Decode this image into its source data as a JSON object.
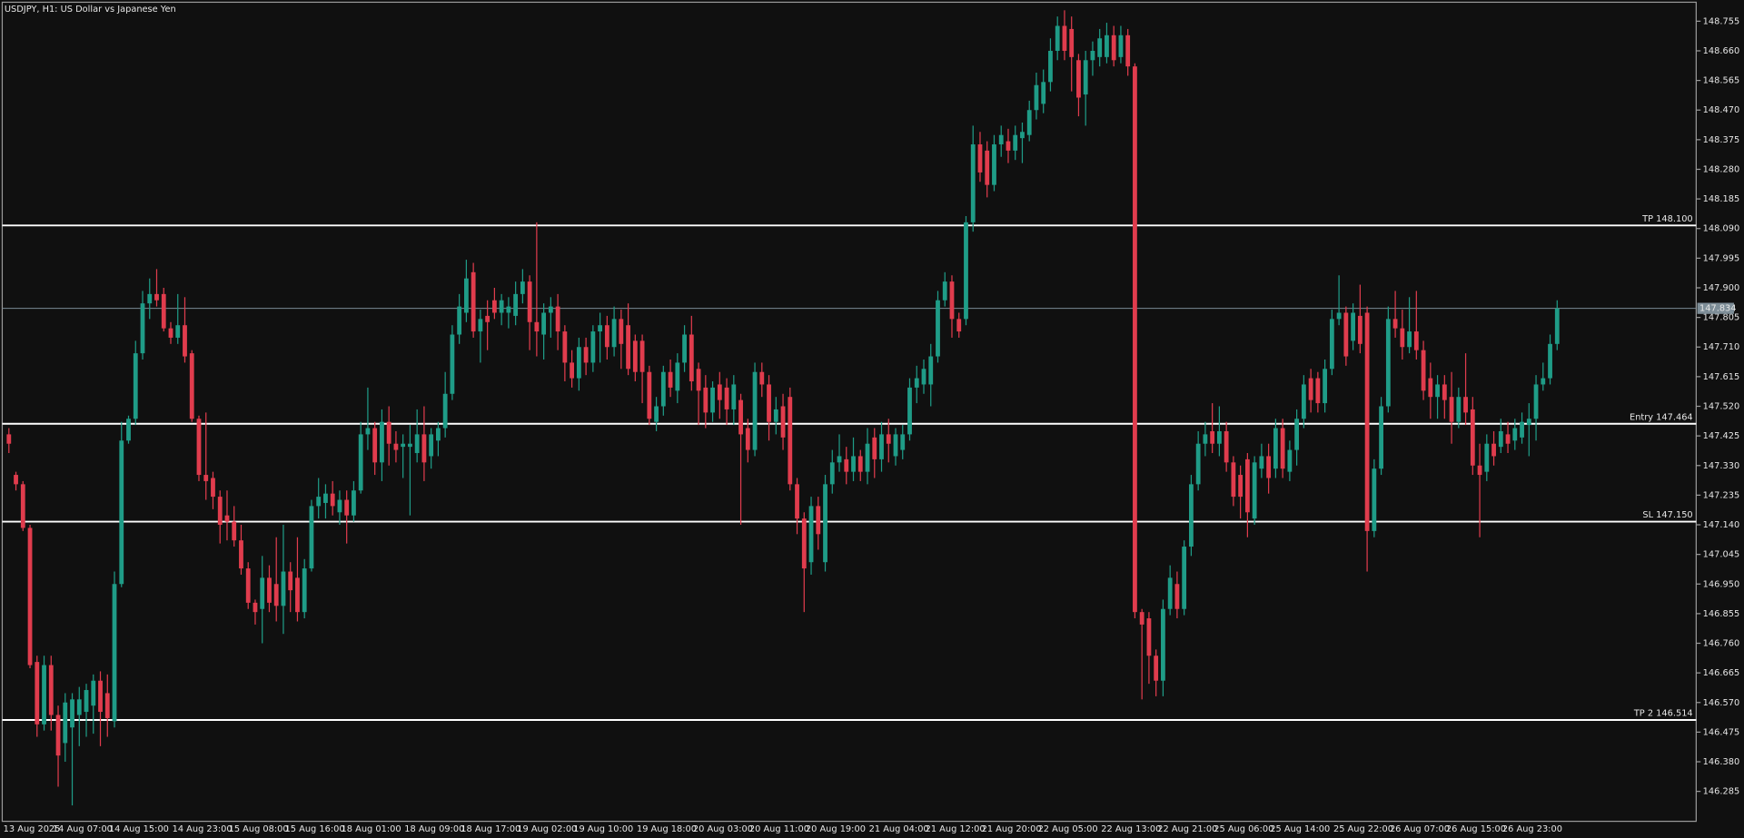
{
  "chart_data": {
    "type": "candlestick",
    "title": "USDJPY, H1:  US Dollar vs Japanese Yen",
    "up_color": "#1f9c87",
    "down_color": "#e03c4d",
    "ylim": [
      146.189,
      148.823
    ],
    "yticks": [
      148.755,
      {
        "value": 148.66,
        "label": "148.660"
      },
      148.565,
      {
        "value": 148.47,
        "label": "148.470"
      },
      148.375,
      {
        "value": 148.28,
        "label": "148.280"
      },
      148.185,
      {
        "value": 148.09,
        "label": "148.090"
      },
      147.995,
      {
        "value": 147.9,
        "label": "147.900"
      },
      147.805,
      {
        "value": 147.71,
        "label": "147.710"
      },
      147.615,
      {
        "value": 147.52,
        "label": "147.520"
      },
      147.425,
      {
        "value": 147.33,
        "label": "147.330"
      },
      147.235,
      {
        "value": 147.14,
        "label": "147.140"
      },
      147.045,
      {
        "value": 146.95,
        "label": "146.950"
      },
      146.855,
      {
        "value": 146.76,
        "label": "146.760"
      },
      146.665,
      {
        "value": 146.57,
        "label": "146.570"
      },
      146.475,
      {
        "value": 146.38,
        "label": "146.380"
      },
      146.285
    ],
    "levels": [
      {
        "value": 148.1,
        "label": "TP 148.100"
      },
      {
        "value": 147.464,
        "label": "Entry 147.464"
      },
      {
        "value": 147.15,
        "label": "SL 147.150"
      },
      {
        "value": 146.514,
        "label": "TP 2 146.514"
      }
    ],
    "last_price": {
      "value": 147.834,
      "label": "147.834"
    },
    "categories": [
      "13 Aug 2025",
      null,
      null,
      null,
      null,
      null,
      null,
      "14 Aug 07:00",
      null,
      null,
      null,
      null,
      null,
      null,
      null,
      "14 Aug 15:00",
      null,
      null,
      null,
      null,
      null,
      null,
      null,
      null,
      "14 Aug 23:00",
      null,
      null,
      null,
      null,
      null,
      null,
      null,
      "15 Aug 08:00",
      null,
      null,
      null,
      null,
      null,
      null,
      null,
      "15 Aug 16:00",
      null,
      null,
      null,
      null,
      null,
      null,
      null,
      "18 Aug 01:00",
      null,
      null,
      null,
      null,
      null,
      null,
      null,
      null,
      "18 Aug 09:00",
      null,
      null,
      null,
      null,
      null,
      null,
      null,
      "18 Aug 17:00",
      null,
      null,
      null,
      null,
      null,
      null,
      null,
      "19 Aug 02:00",
      null,
      null,
      null,
      null,
      null,
      null,
      null,
      "19 Aug 10:00",
      null,
      null,
      null,
      null,
      null,
      null,
      null,
      null,
      "19 Aug 18:00",
      null,
      null,
      null,
      null,
      null,
      null,
      null,
      "20 Aug 03:00",
      null,
      null,
      null,
      null,
      null,
      null,
      null,
      "20 Aug 11:00",
      null,
      null,
      null,
      null,
      null,
      null,
      null,
      "20 Aug 19:00",
      null,
      null,
      null,
      null,
      null,
      null,
      null,
      null,
      "21 Aug 04:00",
      null,
      null,
      null,
      null,
      null,
      null,
      null,
      "21 Aug 12:00",
      null,
      null,
      null,
      null,
      null,
      null,
      null,
      "21 Aug 20:00",
      null,
      null,
      null,
      null,
      null,
      null,
      null,
      "22 Aug 05:00",
      null,
      null,
      null,
      null,
      null,
      null,
      null,
      null,
      "22 Aug 13:00",
      null,
      null,
      null,
      null,
      null,
      null,
      null,
      "22 Aug 21:00",
      null,
      null,
      null,
      null,
      null,
      null,
      null,
      "25 Aug 06:00",
      null,
      null,
      null,
      null,
      null,
      null,
      null,
      "25 Aug 14:00",
      null,
      null,
      null,
      null,
      null,
      null,
      null,
      null,
      "25 Aug 22:00",
      null,
      null,
      null,
      null,
      null,
      null,
      null,
      "26 Aug 07:00",
      null,
      null,
      null,
      null,
      null,
      null,
      null,
      "26 Aug 15:00",
      null,
      null,
      null,
      null,
      null,
      null,
      null,
      "26 Aug 23:00",
      null,
      null,
      null,
      null,
      null,
      null,
      null
    ],
    "open": [
      147.43,
      147.3,
      147.27,
      147.13,
      146.7,
      146.5,
      146.69,
      146.53,
      146.44,
      146.49,
      146.53,
      146.54,
      146.56,
      146.64,
      146.6,
      146.51,
      146.95,
      147.41,
      147.48,
      147.69,
      147.85,
      147.88,
      147.88,
      147.77,
      147.74,
      147.78,
      147.69,
      147.48,
      147.3,
      147.29,
      147.23,
      147.17,
      147.15,
      147.09,
      147.0,
      146.89,
      146.87,
      146.97,
      146.95,
      146.88,
      146.99,
      146.97,
      146.86,
      147.0,
      147.2,
      147.21,
      147.24,
      147.18,
      147.22,
      147.17,
      147.25,
      147.43,
      147.45,
      147.34,
      147.47,
      147.4,
      147.39,
      147.39,
      147.37,
      147.43,
      147.36,
      147.41,
      147.45,
      147.56,
      147.75,
      147.82,
      147.95,
      147.76,
      147.81,
      147.86,
      147.82,
      147.82,
      147.81,
      147.88,
      147.92,
      147.79,
      147.75,
      147.82,
      147.84,
      147.76,
      147.66,
      147.61,
      147.71,
      147.66,
      147.76,
      147.78,
      147.71,
      147.8,
      147.78,
      147.73,
      147.73,
      147.63,
      147.47,
      147.52,
      147.63,
      147.57,
      147.66,
      147.75,
      147.64,
      147.58,
      147.5,
      147.59,
      147.58,
      147.51,
      147.54,
      147.45,
      147.38,
      147.63,
      147.59,
      147.47,
      147.52,
      147.55,
      147.27,
      147.16,
      147.02,
      147.2,
      147.02,
      147.27,
      147.34,
      147.35,
      147.31,
      147.36,
      147.31,
      147.42,
      147.35,
      147.43,
      147.36,
      147.38,
      147.43,
      147.58,
      147.59,
      147.59,
      147.68,
      147.86,
      147.92,
      147.8,
      147.8,
      148.11,
      148.36,
      148.34,
      148.23,
      148.36,
      148.37,
      148.34,
      148.38,
      148.39,
      148.47,
      148.49,
      148.56,
      148.66,
      148.74,
      148.73,
      148.63,
      148.52,
      148.63,
      148.64,
      148.64,
      148.71,
      148.64,
      148.71,
      148.61,
      146.86,
      146.84,
      146.72,
      146.64,
      146.87,
      146.95,
      146.87,
      147.07,
      147.27,
      147.4,
      147.44,
      147.4,
      147.44,
      147.34,
      147.3,
      147.35,
      147.16,
      147.32,
      147.36,
      147.32,
      147.45,
      147.31,
      147.38,
      147.48,
      147.61,
      147.61,
      147.53,
      147.64,
      147.8,
      147.82,
      147.73,
      147.81,
      147.82,
      147.12,
      147.32,
      147.52,
      147.8,
      147.77,
      147.71,
      147.76,
      147.7,
      147.61,
      147.55,
      147.59,
      147.55,
      147.47,
      147.55,
      147.51,
      147.33,
      147.31,
      147.4,
      147.39,
      147.43,
      147.41,
      147.42,
      147.46,
      147.48,
      147.59,
      147.61,
      147.72
    ],
    "high": [
      147.45,
      147.31,
      147.28,
      147.14,
      146.72,
      146.72,
      146.72,
      146.56,
      146.6,
      146.6,
      146.62,
      146.63,
      146.66,
      146.67,
      146.66,
      146.99,
      147.47,
      147.49,
      147.73,
      147.89,
      147.93,
      147.96,
      147.9,
      147.79,
      147.88,
      147.87,
      147.7,
      147.49,
      147.5,
      147.31,
      147.25,
      147.25,
      147.2,
      147.14,
      147.02,
      146.9,
      147.04,
      147.01,
      147.1,
      147.14,
      147.02,
      147.1,
      147.03,
      147.22,
      147.29,
      147.27,
      147.28,
      147.25,
      147.25,
      147.28,
      147.47,
      147.58,
      147.47,
      147.51,
      147.52,
      147.44,
      147.43,
      147.46,
      147.51,
      147.52,
      147.45,
      147.47,
      147.63,
      147.78,
      147.88,
      147.99,
      147.98,
      147.83,
      147.86,
      147.9,
      147.88,
      147.87,
      147.92,
      147.96,
      147.94,
      148.11,
      147.85,
      147.87,
      147.88,
      147.78,
      147.7,
      147.74,
      147.74,
      147.78,
      147.82,
      147.81,
      147.84,
      147.83,
      147.85,
      147.75,
      147.75,
      147.65,
      147.55,
      147.65,
      147.67,
      147.69,
      147.78,
      147.81,
      147.66,
      147.62,
      147.6,
      147.63,
      147.61,
      147.62,
      147.56,
      147.48,
      147.66,
      147.66,
      147.62,
      147.55,
      147.56,
      147.58,
      147.29,
      147.18,
      147.23,
      147.23,
      147.3,
      147.38,
      147.43,
      147.39,
      147.42,
      147.38,
      147.45,
      147.45,
      147.47,
      147.48,
      147.45,
      147.46,
      147.61,
      147.65,
      147.67,
      147.72,
      147.89,
      147.95,
      147.94,
      147.82,
      148.13,
      148.42,
      148.4,
      148.37,
      148.39,
      148.42,
      148.41,
      148.42,
      148.43,
      148.5,
      148.59,
      148.6,
      148.7,
      148.77,
      148.79,
      148.77,
      148.65,
      148.66,
      148.69,
      148.73,
      148.75,
      148.74,
      148.74,
      148.73,
      148.62,
      146.87,
      146.86,
      146.74,
      146.9,
      147.01,
      146.99,
      147.09,
      147.3,
      147.44,
      147.47,
      147.53,
      147.52,
      147.47,
      147.36,
      147.33,
      147.37,
      147.36,
      147.4,
      147.4,
      147.48,
      147.48,
      147.41,
      147.51,
      147.62,
      147.64,
      147.63,
      147.67,
      147.83,
      147.94,
      147.84,
      147.85,
      147.91,
      147.84,
      147.35,
      147.55,
      147.84,
      147.89,
      147.83,
      147.87,
      147.89,
      147.73,
      147.66,
      147.62,
      147.62,
      147.63,
      147.58,
      147.69,
      147.55,
      147.4,
      147.43,
      147.44,
      147.48,
      147.47,
      147.48,
      147.5,
      147.53,
      147.62,
      147.66,
      147.75,
      147.86
    ],
    "low": [
      147.37,
      147.25,
      147.12,
      146.68,
      146.46,
      146.48,
      146.48,
      146.3,
      146.38,
      146.24,
      146.43,
      146.46,
      146.47,
      146.43,
      146.46,
      146.49,
      146.94,
      147.4,
      147.46,
      147.67,
      147.8,
      147.84,
      147.76,
      147.72,
      147.72,
      147.66,
      147.47,
      147.28,
      147.22,
      147.19,
      147.08,
      147.09,
      147.07,
      146.98,
      146.87,
      146.82,
      146.76,
      146.86,
      146.83,
      146.79,
      146.86,
      146.83,
      146.84,
      146.99,
      147.16,
      147.16,
      147.17,
      147.14,
      147.08,
      147.15,
      147.24,
      147.38,
      147.3,
      147.28,
      147.33,
      147.34,
      147.29,
      147.17,
      147.34,
      147.28,
      147.32,
      147.36,
      147.42,
      147.54,
      147.72,
      147.79,
      147.74,
      147.66,
      147.7,
      147.8,
      147.78,
      147.77,
      147.78,
      147.85,
      147.7,
      147.68,
      147.67,
      147.74,
      147.7,
      147.6,
      147.58,
      147.57,
      147.62,
      147.63,
      147.66,
      147.67,
      147.68,
      147.64,
      147.62,
      147.6,
      147.53,
      147.46,
      147.44,
      147.49,
      147.55,
      147.53,
      147.63,
      147.57,
      147.46,
      147.45,
      147.47,
      147.48,
      147.46,
      147.46,
      147.14,
      147.34,
      147.36,
      147.55,
      147.41,
      147.43,
      147.38,
      147.25,
      147.11,
      146.86,
      146.98,
      147.06,
      146.99,
      147.24,
      147.31,
      147.27,
      147.28,
      147.28,
      147.27,
      147.29,
      147.31,
      147.34,
      147.33,
      147.35,
      147.41,
      147.53,
      147.56,
      147.52,
      147.66,
      147.84,
      147.74,
      147.74,
      147.78,
      148.08,
      148.24,
      148.19,
      148.21,
      148.32,
      148.3,
      148.31,
      148.3,
      148.37,
      148.44,
      148.46,
      148.53,
      148.63,
      148.63,
      148.53,
      148.45,
      148.42,
      148.58,
      148.61,
      148.62,
      148.61,
      148.62,
      148.58,
      146.84,
      146.58,
      146.63,
      146.59,
      146.59,
      146.85,
      146.84,
      146.85,
      147.04,
      147.25,
      147.36,
      147.37,
      147.36,
      147.31,
      147.2,
      147.16,
      147.1,
      147.14,
      147.29,
      147.24,
      147.29,
      147.29,
      147.28,
      147.33,
      147.45,
      147.5,
      147.5,
      147.5,
      147.62,
      147.78,
      147.65,
      147.7,
      147.69,
      146.99,
      147.1,
      147.3,
      147.5,
      147.74,
      147.67,
      147.69,
      147.67,
      147.54,
      147.48,
      147.48,
      147.48,
      147.4,
      147.45,
      147.46,
      147.3,
      147.1,
      147.28,
      147.33,
      147.37,
      147.37,
      147.38,
      147.4,
      147.36,
      147.41,
      147.57,
      147.59,
      147.7
    ],
    "close": [
      147.4,
      147.27,
      147.13,
      146.69,
      146.5,
      146.69,
      146.53,
      146.4,
      146.57,
      146.58,
      146.58,
      146.61,
      146.64,
      146.54,
      146.52,
      146.95,
      147.41,
      147.48,
      147.69,
      147.85,
      147.88,
      147.86,
      147.77,
      147.74,
      147.78,
      147.68,
      147.48,
      147.3,
      147.28,
      147.23,
      147.14,
      147.15,
      147.09,
      147.0,
      146.89,
      146.86,
      146.97,
      146.89,
      146.88,
      146.99,
      146.93,
      146.86,
      147.0,
      147.2,
      147.23,
      147.24,
      147.2,
      147.22,
      147.17,
      147.25,
      147.43,
      147.45,
      147.34,
      147.47,
      147.4,
      147.38,
      147.4,
      147.4,
      147.43,
      147.34,
      147.43,
      147.45,
      147.56,
      147.75,
      147.84,
      147.93,
      147.76,
      147.8,
      147.79,
      147.82,
      147.86,
      147.84,
      147.88,
      147.92,
      147.79,
      147.76,
      147.82,
      147.84,
      147.76,
      147.66,
      147.61,
      147.71,
      147.66,
      147.76,
      147.78,
      147.71,
      147.8,
      147.72,
      147.64,
      147.63,
      147.63,
      147.48,
      147.52,
      147.63,
      147.58,
      147.66,
      147.75,
      147.6,
      147.57,
      147.5,
      147.58,
      147.54,
      147.51,
      147.59,
      147.43,
      147.38,
      147.63,
      147.59,
      147.47,
      147.51,
      147.42,
      147.27,
      147.16,
      147.0,
      147.2,
      147.11,
      147.27,
      147.34,
      147.36,
      147.31,
      147.36,
      147.31,
      147.4,
      147.35,
      147.43,
      147.4,
      147.43,
      147.43,
      147.58,
      147.61,
      147.64,
      147.68,
      147.86,
      147.92,
      147.8,
      147.76,
      148.11,
      148.36,
      148.27,
      148.23,
      148.36,
      148.39,
      148.34,
      148.39,
      148.4,
      148.47,
      148.55,
      148.56,
      148.66,
      148.74,
      148.66,
      148.64,
      148.51,
      148.63,
      148.66,
      148.7,
      148.71,
      148.63,
      148.71,
      148.61,
      146.86,
      146.82,
      146.72,
      146.64,
      146.87,
      146.97,
      146.87,
      147.07,
      147.27,
      147.4,
      147.43,
      147.4,
      147.44,
      147.34,
      147.23,
      147.23,
      147.18,
      147.34,
      147.36,
      147.29,
      147.45,
      147.32,
      147.38,
      147.48,
      147.59,
      147.54,
      147.53,
      147.64,
      147.8,
      147.82,
      147.68,
      147.82,
      147.72,
      147.12,
      147.32,
      147.52,
      147.8,
      147.77,
      147.71,
      147.76,
      147.7,
      147.57,
      147.55,
      147.59,
      147.54,
      147.47,
      147.55,
      147.5,
      147.33,
      147.3,
      147.4,
      147.36,
      147.44,
      147.4,
      147.45,
      147.47,
      147.48,
      147.59,
      147.61,
      147.72,
      147.834
    ]
  }
}
